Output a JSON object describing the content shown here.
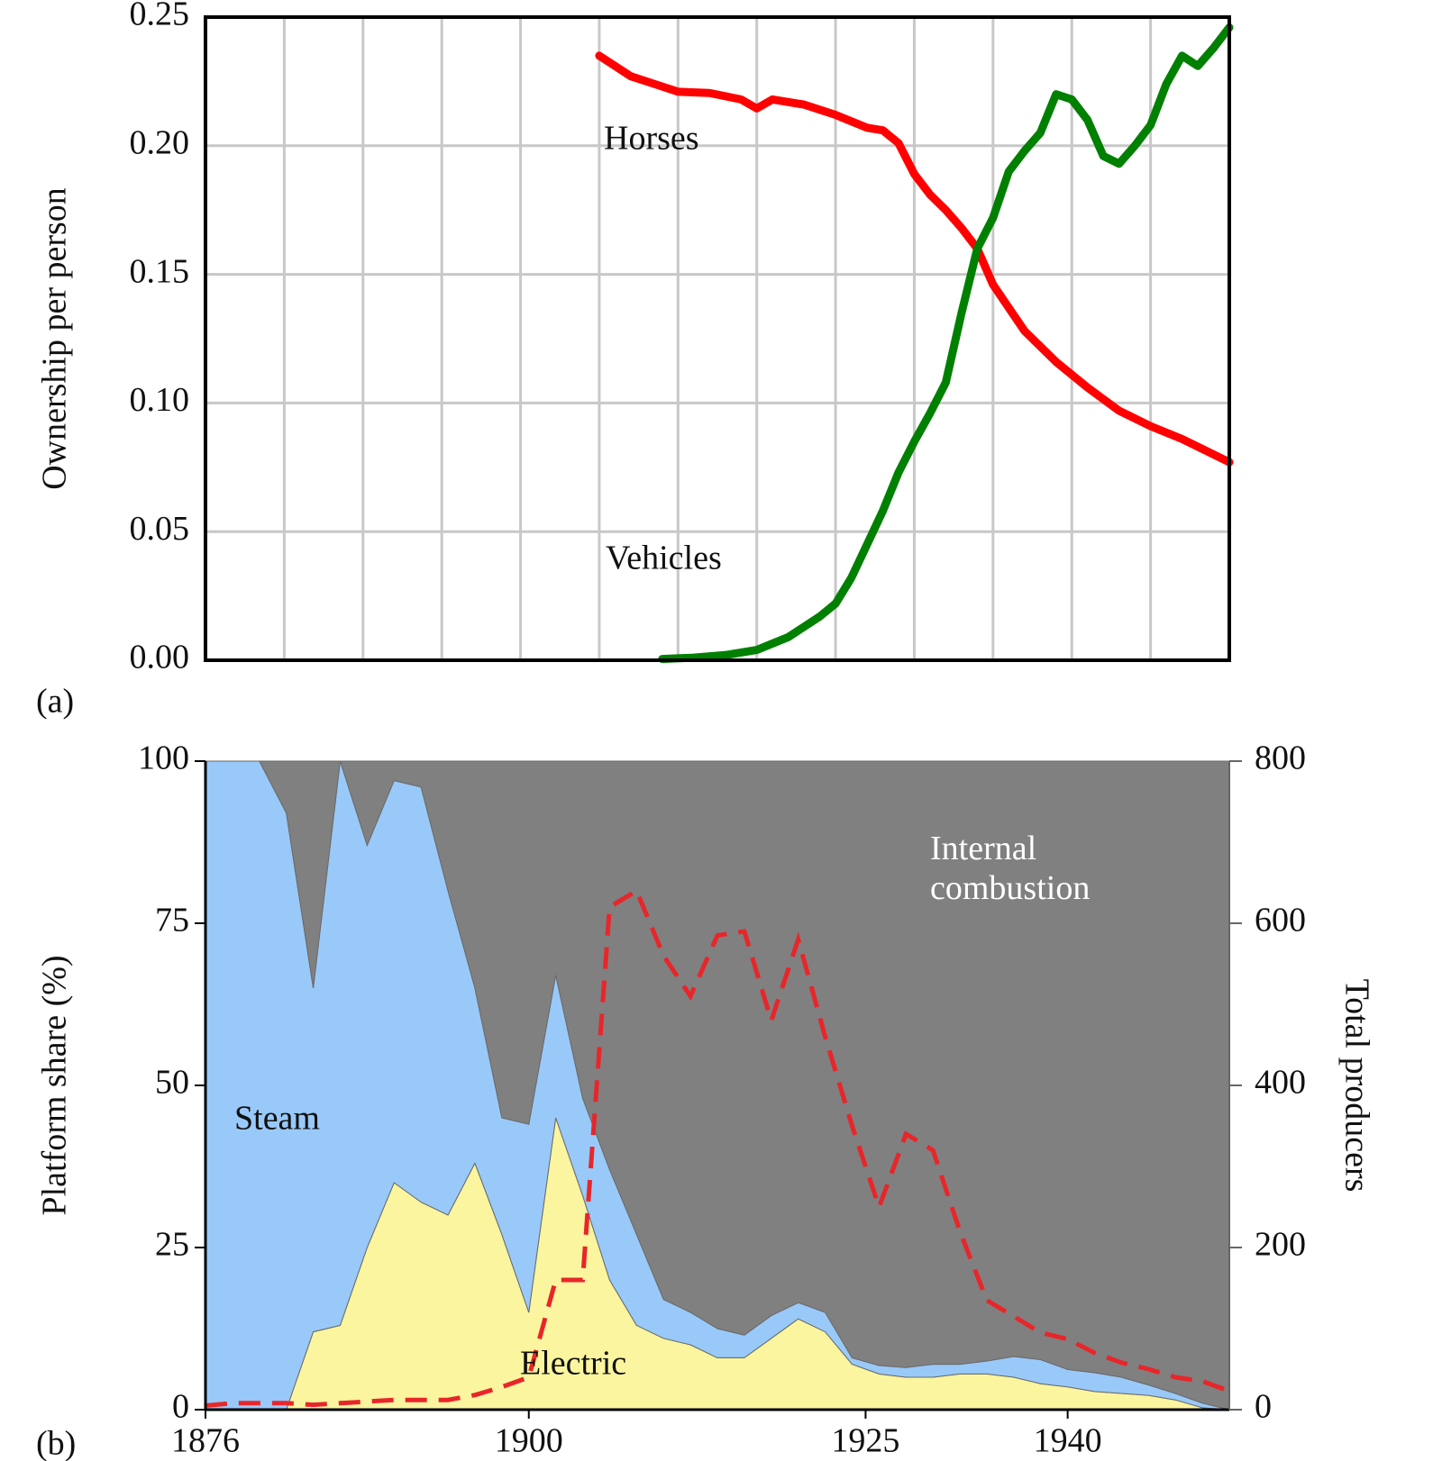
{
  "chart_data": [
    {
      "type": "line",
      "panel_label": "(a)",
      "ylabel": "Ownership per person",
      "xlim": [
        1880,
        1945
      ],
      "xticks": [
        1880,
        1885,
        1890,
        1895,
        1900,
        1905,
        1910,
        1915,
        1920,
        1925,
        1930,
        1935,
        1940,
        1945
      ],
      "ylim": [
        0,
        0.25
      ],
      "yticks": [
        {
          "value": 0,
          "label": "0.00"
        },
        {
          "value": 0.05,
          "label": "0.05"
        },
        {
          "value": 0.1,
          "label": "0.10"
        },
        {
          "value": 0.15,
          "label": "0.15"
        },
        {
          "value": 0.2,
          "label": "0.20"
        },
        {
          "value": 0.25,
          "label": "0.25"
        }
      ],
      "grid": true,
      "series": [
        {
          "name": "Horses",
          "color": "#ff0000",
          "x": [
            1905,
            1906,
            1907,
            1908,
            1909,
            1910,
            1912,
            1914,
            1915,
            1916,
            1918,
            1920,
            1922,
            1923,
            1924,
            1925,
            1926,
            1927,
            1928,
            1929,
            1930,
            1931,
            1932,
            1934,
            1936,
            1938,
            1940,
            1942,
            1945
          ],
          "values": [
            0.235,
            0.231,
            0.227,
            0.225,
            0.223,
            0.221,
            0.2205,
            0.218,
            0.2145,
            0.218,
            0.216,
            0.212,
            0.207,
            0.206,
            0.201,
            0.189,
            0.181,
            0.175,
            0.168,
            0.16,
            0.146,
            0.137,
            0.128,
            0.116,
            0.106,
            0.097,
            0.091,
            0.086,
            0.077
          ]
        },
        {
          "name": "Vehicles",
          "color": "#008000",
          "x": [
            1909,
            1911,
            1913,
            1915,
            1917,
            1918,
            1919,
            1920,
            1921,
            1922,
            1923,
            1924,
            1925,
            1926,
            1927,
            1928,
            1929,
            1930,
            1931,
            1932,
            1933,
            1934,
            1935,
            1936,
            1937,
            1938,
            1939,
            1940,
            1941,
            1942,
            1943,
            1944,
            1945
          ],
          "values": [
            0.0005,
            0.001,
            0.002,
            0.004,
            0.009,
            0.013,
            0.017,
            0.022,
            0.032,
            0.045,
            0.058,
            0.073,
            0.085,
            0.096,
            0.108,
            0.135,
            0.16,
            0.172,
            0.19,
            0.198,
            0.205,
            0.22,
            0.218,
            0.21,
            0.196,
            0.193,
            0.2,
            0.208,
            0.224,
            0.235,
            0.231,
            0.238,
            0.246
          ]
        }
      ]
    },
    {
      "type": "stacked_area",
      "panel_label": "(b)",
      "ylabel": "Platform share (%)",
      "y2label": "Total producers",
      "x": [
        1876,
        1878,
        1880,
        1882,
        1884,
        1886,
        1888,
        1890,
        1892,
        1894,
        1896,
        1898,
        1900,
        1902,
        1904,
        1906,
        1908,
        1910,
        1912,
        1914,
        1916,
        1918,
        1920,
        1922,
        1924,
        1926,
        1928,
        1930,
        1932,
        1934,
        1936,
        1938,
        1940,
        1942,
        1944,
        1946,
        1948,
        1950,
        1952
      ],
      "xlim": [
        1876,
        1952
      ],
      "xticks": [
        1876,
        1900,
        1925,
        1940
      ],
      "ylim": [
        0,
        100
      ],
      "yticks": [
        0,
        25,
        50,
        75,
        100
      ],
      "y2lim": [
        0,
        800
      ],
      "y2ticks": [
        0,
        200,
        400,
        600,
        800
      ],
      "series": [
        {
          "name": "Electric",
          "color": "#faf59e",
          "values": [
            0,
            0,
            0,
            0,
            12,
            13,
            25,
            35,
            32,
            30,
            38,
            27,
            15,
            45,
            33,
            20,
            13,
            11,
            10,
            8,
            8,
            11,
            14,
            12,
            7,
            5.5,
            5,
            5,
            5.5,
            5.5,
            5,
            4,
            3.5,
            2.8,
            2.5,
            2.2,
            1.5,
            0.3,
            0
          ]
        },
        {
          "name": "Steam",
          "color": "#99c9f9",
          "values": [
            100,
            100,
            100,
            92,
            53,
            87,
            62,
            62,
            64,
            50,
            27,
            18,
            29,
            22,
            15,
            17,
            14,
            6,
            5,
            4.5,
            3.5,
            3.5,
            2.5,
            3,
            1,
            1.3,
            1.5,
            2,
            1.5,
            2,
            3.2,
            3.7,
            2.7,
            2.9,
            2.5,
            1.6,
            1,
            0.7,
            0
          ]
        },
        {
          "name": "Internal combustion",
          "color": "#808080",
          "values": [
            0,
            0,
            0,
            8,
            35,
            0,
            13,
            3,
            4,
            20,
            35,
            55,
            56,
            33,
            52,
            63,
            73,
            83,
            85,
            87.5,
            88.5,
            85.5,
            83.5,
            85,
            92,
            93.2,
            93.5,
            93,
            93,
            92.5,
            91.8,
            92.3,
            93.8,
            94.3,
            95,
            96.2,
            97.5,
            99,
            100
          ]
        },
        {
          "color": "#e8262a",
          "axis": "y2",
          "style": "dashed",
          "values": [
            5,
            8,
            8,
            8,
            6,
            8,
            10,
            12,
            12,
            12,
            18,
            28,
            40,
            160,
            160,
            620,
            640,
            560,
            510,
            585,
            590,
            480,
            580,
            460,
            350,
            250,
            340,
            320,
            220,
            135,
            115,
            95,
            87,
            70,
            58,
            50,
            40,
            35,
            23
          ]
        }
      ]
    }
  ]
}
